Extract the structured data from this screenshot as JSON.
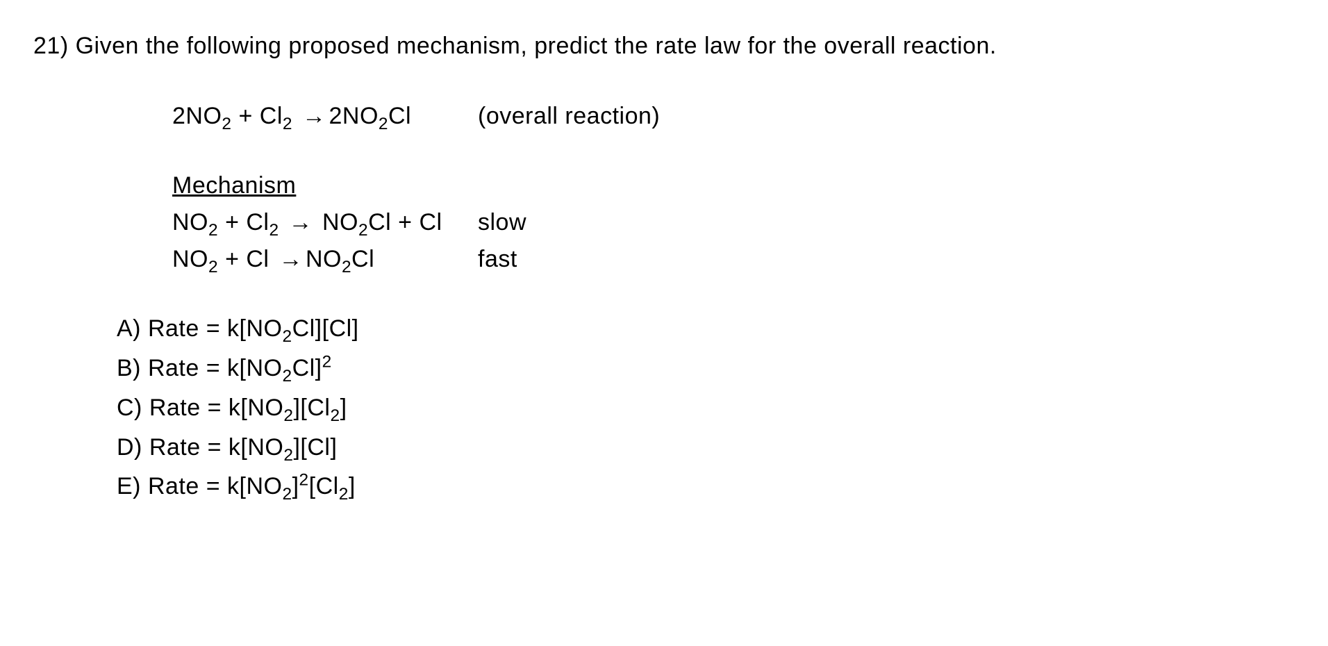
{
  "question": {
    "number": "21)",
    "prompt": "Given the following proposed mechanism, predict the rate law for the overall reaction."
  },
  "overall": {
    "lhs_a_coef": "2",
    "lhs_a_base": "NO",
    "lhs_a_sub": "2",
    "plus1": "+",
    "lhs_b_base": "Cl",
    "lhs_b_sub": "2",
    "arrow": "→",
    "rhs_coef": "2",
    "rhs_base": "NO",
    "rhs_sub1": "2",
    "rhs_tail": "Cl",
    "label": "(overall reaction)"
  },
  "mechanism": {
    "heading": "Mechanism",
    "step1": {
      "a_base": "NO",
      "a_sub": "2",
      "plus1": "+",
      "b_base": "Cl",
      "b_sub": "2",
      "arrow": "→",
      "c_base": "NO",
      "c_sub": "2",
      "c_tail": "Cl",
      "plus2": "+",
      "d": "Cl",
      "label": "slow"
    },
    "step2": {
      "a_base": "NO",
      "a_sub": "2",
      "plus1": "+",
      "b": "Cl",
      "arrow": "→",
      "c_base": "NO",
      "c_sub": "2",
      "c_tail": "Cl",
      "label": "fast"
    }
  },
  "choices": {
    "A": {
      "letter": "A)",
      "lead": "Rate = k[NO",
      "s1": "2",
      "mid1": "Cl][Cl]"
    },
    "B": {
      "letter": "B)",
      "lead": "Rate = k[NO",
      "s1": "2",
      "mid1": "Cl]",
      "sup1": "2"
    },
    "C": {
      "letter": "C)",
      "lead": "Rate = k[NO",
      "s1": "2",
      "mid1": "][Cl",
      "s2": "2",
      "mid2": "]"
    },
    "D": {
      "letter": "D)",
      "lead": "Rate = k[NO",
      "s1": "2",
      "mid1": "][Cl]"
    },
    "E": {
      "letter": "E)",
      "lead": "Rate = k[NO",
      "s1": "2",
      "mid1": "]",
      "sup1": "2",
      "mid2": "[Cl",
      "s2": "2",
      "mid3": "]"
    }
  }
}
